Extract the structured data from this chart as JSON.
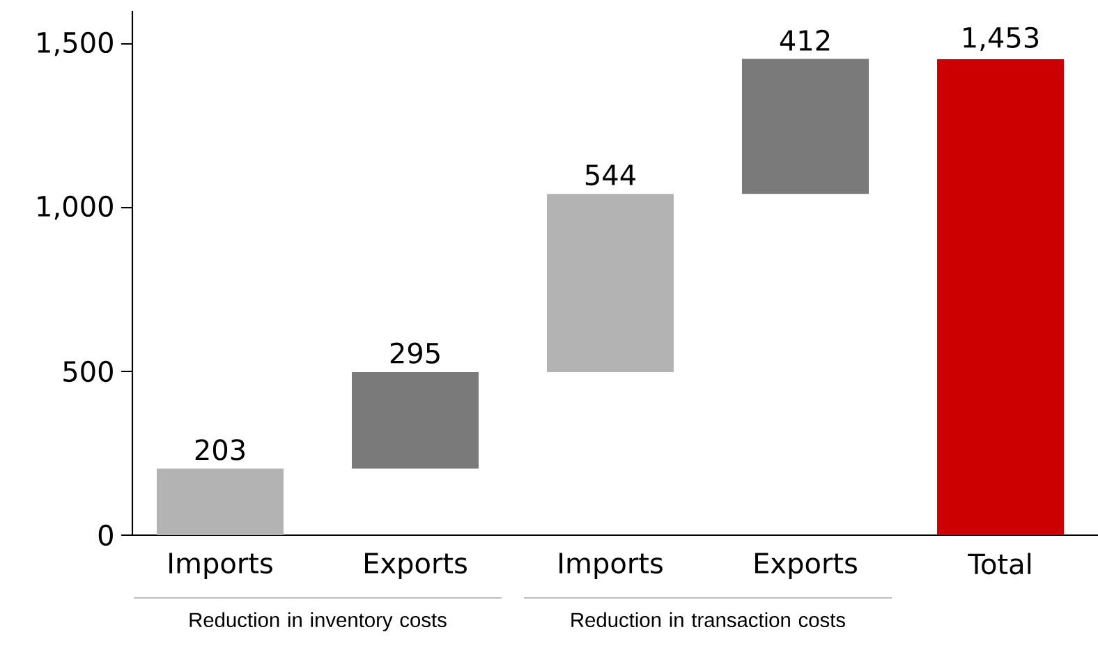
{
  "chart_data": {
    "type": "bar",
    "categories": [
      "Imports",
      "Exports",
      "Imports",
      "Exports",
      "Total"
    ],
    "values": [
      203,
      295,
      544,
      412,
      1453
    ],
    "base": [
      0,
      203,
      498,
      1042,
      0
    ],
    "colors": [
      "#b3b3b3",
      "#7a7a7a",
      "#b3b3b3",
      "#7a7a7a",
      "#cc0000"
    ],
    "value_labels": [
      "203",
      "295",
      "544",
      "412",
      "1,453"
    ],
    "ylim": [
      0,
      1600
    ],
    "yticks": [
      0,
      500,
      {
        "value": 1000,
        "label": "1,000"
      },
      {
        "value": 1500,
        "label": "1,500"
      }
    ],
    "annotations": [
      "Reduction in inventory costs",
      "Reduction in transaction costs"
    ]
  }
}
